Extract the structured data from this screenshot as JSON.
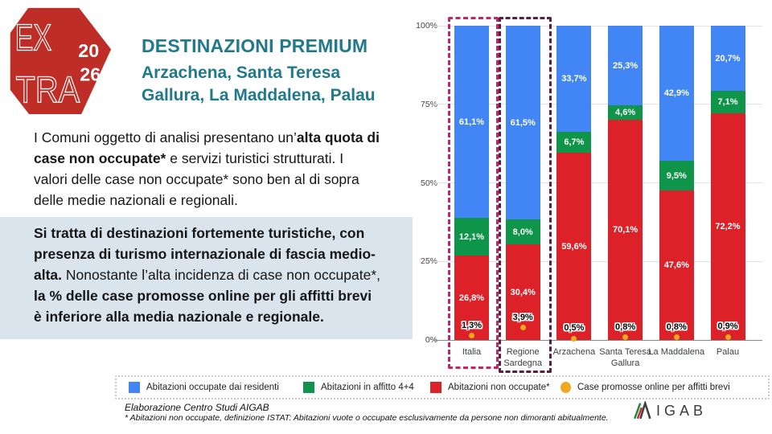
{
  "slide": {
    "logo": {
      "word_top": "EX",
      "word_bottom": "TRA",
      "year_top": "20",
      "year_bottom": "26",
      "bg_color": "#BF2E26"
    },
    "header": {
      "title": "DESTINAZIONI PREMIUM",
      "subtitle": "Arzachena, Santa Teresa\nGallura, La Maddalena, Palau",
      "color": "#21798C"
    },
    "paragraph1": [
      {
        "t": "I Comuni oggetto di analisi presentano un’",
        "b": false
      },
      {
        "t": "alta quota di\ncase non occupate*",
        "b": true
      },
      {
        "t": " e servizi turistici strutturati. I\nvalori delle case non occupate* sono ben al di sopra\ndelle medie nazionali e regionali.",
        "b": false
      }
    ],
    "paragraph2": [
      {
        "t": "Si tratta di destinazioni fortemente turistiche, con\npresenza di turismo internazionale di fascia medio-\nalta.",
        "b": true
      },
      {
        "t": " Nonostante l’alta incidenza di case non occupate*,\n",
        "b": false
      },
      {
        "t": "la % delle case promosse online per gli affitti brevi\nè inferiore alla media nazionale e regionale.",
        "b": true
      }
    ],
    "highlight_bg": "#DAE4EC"
  },
  "chart_data": {
    "type": "bar",
    "stacked": true,
    "title": "",
    "xlabel": "",
    "ylabel": "",
    "ylim": [
      0,
      100
    ],
    "grid": true,
    "legend_position": "bottom",
    "categories": [
      "Italia",
      "Regione Sardegna",
      "Arzachena",
      "Santa Teresa Gallura",
      "La Maddalena",
      "Palau"
    ],
    "category_label_lines": [
      [
        "Italia"
      ],
      [
        "Regione",
        "Sardegna"
      ],
      [
        "Arzachena"
      ],
      [
        "Santa Teresa",
        "Gallura"
      ],
      [
        "La Maddalena"
      ],
      [
        "Palau"
      ]
    ],
    "y_ticks": [
      {
        "label": "0%",
        "value": 0
      },
      {
        "label": "25%",
        "value": 25
      },
      {
        "label": "50%",
        "value": 50
      },
      {
        "label": "75%",
        "value": 75
      },
      {
        "label": "100%",
        "value": 100
      }
    ],
    "series": [
      {
        "name": "Abitazioni non occupate*",
        "color": "#DC2228",
        "values": [
          26.8,
          30.4,
          59.6,
          70.1,
          47.6,
          72.2
        ],
        "labels": [
          "26,8%",
          "30,4%",
          "59,6%",
          "70,1%",
          "47,6%",
          "72,2%"
        ]
      },
      {
        "name": "Abitazioni in affitto 4+4",
        "color": "#0E9549",
        "values": [
          12.1,
          8.0,
          6.7,
          4.6,
          9.5,
          7.1
        ],
        "labels": [
          "12,1%",
          "8,0%",
          "6,7%",
          "4,6%",
          "9,5%",
          "7,1%"
        ]
      },
      {
        "name": "Abitazioni occupate dai residenti",
        "color": "#4285F4",
        "values": [
          61.1,
          61.5,
          33.7,
          25.3,
          42.9,
          20.7
        ],
        "labels": [
          "61,1%",
          "61,5%",
          "33,7%",
          "25,3%",
          "42,9%",
          "20,7%"
        ]
      }
    ],
    "point_series": {
      "name": "Case promosse online per affitti brevi",
      "color": "#F0A91E",
      "values": [
        1.3,
        3.9,
        0.5,
        0.8,
        0.8,
        0.9
      ],
      "labels": [
        "1,3%",
        "3,9%",
        "0,5%",
        "0,8%",
        "0,8%",
        "0,9%"
      ]
    },
    "highlights": [
      {
        "category": "Italia",
        "index": 0,
        "color": "#C22667"
      },
      {
        "category": "Regione Sardegna",
        "index": 1,
        "color": "#5D1F3E"
      }
    ],
    "legend": [
      {
        "label": "Abitazioni occupate dai residenti",
        "color": "#4285F4",
        "shape": "square"
      },
      {
        "label": "Abitazioni in affitto 4+4",
        "color": "#0E9549",
        "shape": "square"
      },
      {
        "label": "Abitazioni non occupate*",
        "color": "#DC2228",
        "shape": "square"
      },
      {
        "label": "Case promosse online per affitti brevi",
        "color": "#F0A91E",
        "shape": "circle"
      }
    ]
  },
  "footer": {
    "source": "Elaborazione Centro Studi AIGAB",
    "note": "* Abitazioni non occupate, definizione ISTAT: Abitazioni vuote o occupate esclusivamente da persone non dimoranti abitualmente.",
    "brand_text": "IGAB"
  }
}
